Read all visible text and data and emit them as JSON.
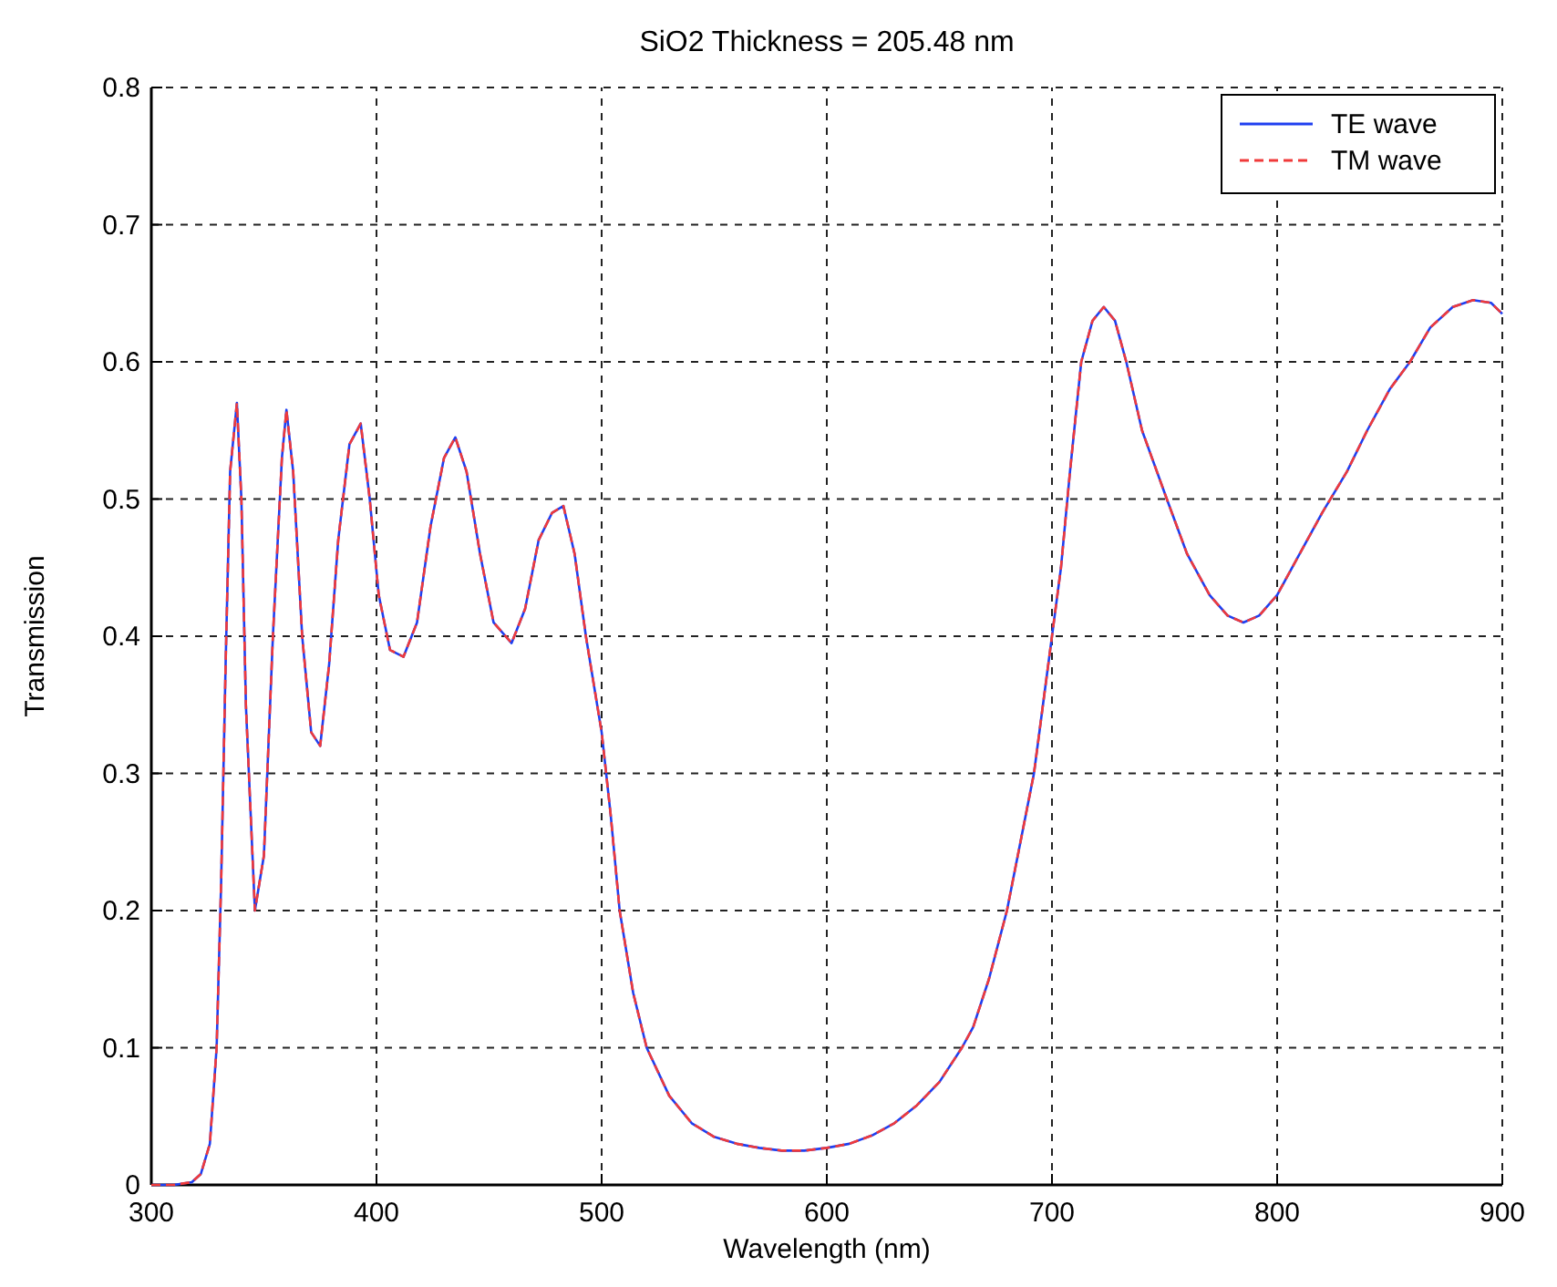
{
  "chart_data": {
    "type": "line",
    "title": "SiO2 Thickness = 205.48 nm",
    "xlabel": "Wavelength (nm)",
    "ylabel": "Transmission",
    "x": [
      300,
      310,
      318,
      322,
      326,
      329,
      331,
      333,
      335,
      338,
      340,
      342,
      346,
      350,
      354,
      358,
      360,
      363,
      367,
      371,
      375,
      379,
      383,
      388,
      393,
      397,
      401,
      406,
      412,
      418,
      424,
      430,
      435,
      440,
      446,
      452,
      460,
      466,
      472,
      478,
      483,
      488,
      493,
      497,
      500,
      504,
      508,
      514,
      520,
      530,
      540,
      550,
      560,
      570,
      580,
      590,
      600,
      610,
      620,
      630,
      640,
      650,
      660,
      665,
      672,
      680,
      686,
      692,
      696,
      700,
      704,
      708,
      713,
      718,
      723,
      728,
      733,
      740,
      751,
      760,
      770,
      778,
      785,
      792,
      800,
      810,
      820,
      831,
      840,
      850,
      859,
      868,
      878,
      887,
      895,
      900
    ],
    "series": [
      {
        "name": "TE wave",
        "color": "#1f3ff0",
        "line_style": "solid",
        "values": [
          0,
          0,
          0.002,
          0.008,
          0.03,
          0.1,
          0.22,
          0.38,
          0.52,
          0.57,
          0.5,
          0.35,
          0.2,
          0.24,
          0.4,
          0.53,
          0.565,
          0.52,
          0.4,
          0.33,
          0.32,
          0.38,
          0.47,
          0.54,
          0.555,
          0.5,
          0.43,
          0.39,
          0.385,
          0.41,
          0.48,
          0.53,
          0.545,
          0.52,
          0.46,
          0.41,
          0.395,
          0.42,
          0.47,
          0.49,
          0.495,
          0.46,
          0.4,
          0.36,
          0.33,
          0.27,
          0.2,
          0.14,
          0.1,
          0.065,
          0.045,
          0.035,
          0.03,
          0.027,
          0.025,
          0.025,
          0.027,
          0.03,
          0.036,
          0.045,
          0.058,
          0.075,
          0.1,
          0.115,
          0.15,
          0.2,
          0.25,
          0.3,
          0.35,
          0.4,
          0.45,
          0.52,
          0.6,
          0.63,
          0.64,
          0.63,
          0.6,
          0.55,
          0.5,
          0.46,
          0.43,
          0.415,
          0.41,
          0.415,
          0.43,
          0.46,
          0.49,
          0.52,
          0.55,
          0.58,
          0.6,
          0.625,
          0.64,
          0.645,
          0.643,
          0.635
        ]
      },
      {
        "name": "TM wave",
        "color": "#f03a3a",
        "line_style": "dashed",
        "values": [
          0,
          0,
          0.002,
          0.008,
          0.03,
          0.1,
          0.22,
          0.38,
          0.52,
          0.57,
          0.5,
          0.35,
          0.2,
          0.24,
          0.4,
          0.53,
          0.565,
          0.52,
          0.4,
          0.33,
          0.32,
          0.38,
          0.47,
          0.54,
          0.555,
          0.5,
          0.43,
          0.39,
          0.385,
          0.41,
          0.48,
          0.53,
          0.545,
          0.52,
          0.46,
          0.41,
          0.395,
          0.42,
          0.47,
          0.49,
          0.495,
          0.46,
          0.4,
          0.36,
          0.33,
          0.27,
          0.2,
          0.14,
          0.1,
          0.065,
          0.045,
          0.035,
          0.03,
          0.027,
          0.025,
          0.025,
          0.027,
          0.03,
          0.036,
          0.045,
          0.058,
          0.075,
          0.1,
          0.115,
          0.15,
          0.2,
          0.25,
          0.3,
          0.35,
          0.4,
          0.45,
          0.52,
          0.6,
          0.63,
          0.64,
          0.63,
          0.6,
          0.55,
          0.5,
          0.46,
          0.43,
          0.415,
          0.41,
          0.415,
          0.43,
          0.46,
          0.49,
          0.52,
          0.55,
          0.58,
          0.6,
          0.625,
          0.64,
          0.645,
          0.643,
          0.635
        ]
      }
    ],
    "xlim": [
      300,
      900
    ],
    "xticks": [
      300,
      400,
      500,
      600,
      700,
      800,
      900
    ],
    "ylim": [
      0,
      0.8
    ],
    "yticks": [
      0,
      0.1,
      0.2,
      0.3,
      0.4,
      0.5,
      0.6,
      0.7,
      0.8
    ],
    "grid": true,
    "legend": "top right",
    "marker": "none"
  }
}
